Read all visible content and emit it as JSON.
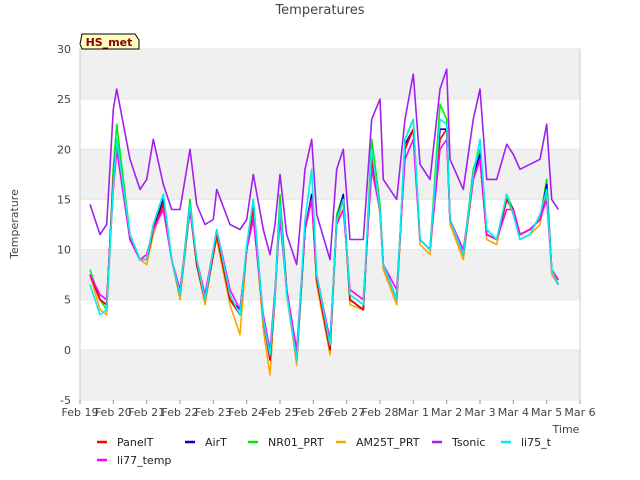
{
  "chart_data": {
    "type": "line",
    "title": "Temperatures",
    "xlabel": "Time",
    "ylabel": "Temperature",
    "ylim": [
      -5,
      30
    ],
    "xlim": [
      "Feb 19",
      "Mar 6"
    ],
    "yticks": [
      -5,
      0,
      5,
      10,
      15,
      20,
      25,
      30
    ],
    "xtick_labels": [
      "Feb 19",
      "Feb 20",
      "Feb 21",
      "Feb 22",
      "Feb 23",
      "Feb 24",
      "Feb 25",
      "Feb 26",
      "Feb 27",
      "Feb 28",
      "Mar 1",
      "Mar 2",
      "Mar 3",
      "Mar 4",
      "Mar 5",
      "Mar 6"
    ],
    "grid": "horizontal bands",
    "annotation": "HS_met",
    "legend_position": "bottom",
    "day_index": [
      0.3,
      0.6,
      0.8,
      1.0,
      1.1,
      1.5,
      1.8,
      2.0,
      2.2,
      2.5,
      2.75,
      3.0,
      3.3,
      3.5,
      3.75,
      4.0,
      4.1,
      4.5,
      4.8,
      5.0,
      5.2,
      5.5,
      5.7,
      5.85,
      6.0,
      6.2,
      6.5,
      6.75,
      6.95,
      7.1,
      7.5,
      7.7,
      7.9,
      8.1,
      8.5,
      8.75,
      9.0,
      9.1,
      9.5,
      9.75,
      10.0,
      10.2,
      10.5,
      10.8,
      11.0,
      11.1,
      11.5,
      11.8,
      12.0,
      12.2,
      12.5,
      12.8,
      13.0,
      13.2,
      13.5,
      13.8,
      14.0,
      14.15,
      14.35
    ],
    "series": [
      {
        "name": "PanelT",
        "color": "#ff0000",
        "values": [
          7.5,
          5.0,
          4.5,
          17.0,
          20.5,
          11.0,
          9.0,
          9.0,
          12.0,
          14.5,
          9.0,
          5.5,
          14.0,
          8.5,
          5.0,
          9.5,
          11.5,
          5.0,
          3.5,
          10.0,
          14.0,
          3.0,
          -1.0,
          5.5,
          14.0,
          6.0,
          -0.5,
          12.0,
          15.0,
          7.0,
          0.0,
          13.0,
          15.0,
          5.0,
          4.0,
          19.0,
          14.0,
          8.5,
          5.0,
          20.0,
          22.0,
          11.0,
          10.0,
          21.0,
          22.0,
          13.0,
          9.5,
          17.0,
          19.0,
          11.5,
          11.0,
          15.0,
          14.0,
          11.5,
          12.0,
          13.0,
          16.0,
          8.0,
          7.0
        ]
      },
      {
        "name": "li77_temp",
        "color": "#ff00ff",
        "values": [
          7.5,
          5.5,
          5.0,
          16.0,
          20.0,
          11.0,
          9.0,
          9.5,
          12.0,
          14.0,
          9.0,
          6.0,
          14.0,
          9.0,
          5.5,
          10.0,
          12.0,
          6.0,
          4.0,
          10.0,
          13.0,
          3.5,
          0.0,
          6.0,
          13.0,
          6.0,
          0.0,
          12.0,
          15.0,
          7.5,
          1.0,
          12.5,
          14.0,
          6.0,
          5.0,
          18.0,
          14.0,
          8.5,
          6.0,
          19.0,
          21.0,
          11.0,
          10.0,
          20.0,
          21.0,
          13.0,
          10.0,
          17.0,
          19.0,
          11.5,
          11.0,
          14.0,
          14.0,
          11.5,
          12.0,
          13.0,
          15.0,
          8.0,
          7.0
        ]
      },
      {
        "name": "AirT",
        "color": "#0000cc",
        "values": [
          7.5,
          5.0,
          4.5,
          17.0,
          21.0,
          11.0,
          9.0,
          9.0,
          12.0,
          15.0,
          9.0,
          5.5,
          14.5,
          8.5,
          5.0,
          9.5,
          11.5,
          5.0,
          4.0,
          10.0,
          14.5,
          3.0,
          -1.0,
          5.5,
          14.5,
          6.0,
          -1.0,
          12.0,
          15.5,
          7.0,
          0.0,
          13.0,
          15.5,
          5.0,
          4.0,
          19.5,
          14.0,
          8.5,
          5.0,
          20.5,
          22.0,
          11.0,
          10.0,
          22.0,
          22.0,
          13.0,
          9.5,
          17.5,
          19.5,
          11.5,
          11.0,
          15.0,
          14.0,
          11.5,
          12.0,
          13.0,
          16.5,
          8.0,
          6.5
        ]
      },
      {
        "name": "NR01_PRT",
        "color": "#00ee00",
        "values": [
          8.0,
          5.0,
          4.0,
          18.0,
          22.5,
          11.5,
          9.0,
          9.0,
          12.5,
          15.5,
          9.0,
          5.5,
          15.0,
          8.5,
          5.0,
          10.0,
          11.5,
          5.0,
          3.5,
          10.0,
          15.0,
          3.0,
          -1.0,
          5.5,
          15.5,
          6.0,
          -1.0,
          12.0,
          15.5,
          7.0,
          0.0,
          13.5,
          15.5,
          5.0,
          4.0,
          21.0,
          14.5,
          8.5,
          5.0,
          21.0,
          23.0,
          11.0,
          10.0,
          24.5,
          23.0,
          13.0,
          9.5,
          18.0,
          20.0,
          11.5,
          11.0,
          15.5,
          14.0,
          11.5,
          12.0,
          13.0,
          17.0,
          8.0,
          6.5
        ]
      },
      {
        "name": "AM25T_PRT",
        "color": "#ffa500",
        "values": [
          7.5,
          4.0,
          3.5,
          16.5,
          20.0,
          11.0,
          9.0,
          8.5,
          11.5,
          14.5,
          9.0,
          5.0,
          14.0,
          8.5,
          4.5,
          9.5,
          11.0,
          4.5,
          1.5,
          10.0,
          14.0,
          2.0,
          -2.5,
          5.0,
          14.0,
          5.5,
          -1.5,
          12.0,
          15.0,
          6.5,
          -0.5,
          12.5,
          15.0,
          4.5,
          4.0,
          19.0,
          13.5,
          8.0,
          4.5,
          20.0,
          22.0,
          10.5,
          9.5,
          21.0,
          22.0,
          12.5,
          9.0,
          17.0,
          19.0,
          11.0,
          10.5,
          15.0,
          13.5,
          11.0,
          11.5,
          12.5,
          16.0,
          7.5,
          6.5
        ]
      },
      {
        "name": "Tsonic",
        "color": "#a020f0",
        "values": [
          14.5,
          11.5,
          12.5,
          24.0,
          26.0,
          19.0,
          16.0,
          17.0,
          21.0,
          16.5,
          14.0,
          14.0,
          20.0,
          14.5,
          12.5,
          13.0,
          16.0,
          12.5,
          12.0,
          13.0,
          17.5,
          12.0,
          9.5,
          12.5,
          17.5,
          11.5,
          8.5,
          18.0,
          21.0,
          13.5,
          9.0,
          18.0,
          20.0,
          11.0,
          11.0,
          23.0,
          25.0,
          17.0,
          15.0,
          23.0,
          27.5,
          18.5,
          17.0,
          26.0,
          28.0,
          19.0,
          16.0,
          23.0,
          26.0,
          17.0,
          17.0,
          20.5,
          19.5,
          18.0,
          18.5,
          19.0,
          22.5,
          15.0,
          14.0
        ]
      },
      {
        "name": "li75_t",
        "color": "#00eeee",
        "values": [
          6.5,
          3.5,
          4.0,
          16.5,
          21.0,
          11.5,
          9.0,
          9.0,
          12.5,
          15.5,
          9.0,
          5.5,
          14.5,
          9.0,
          5.0,
          10.0,
          12.0,
          5.5,
          3.5,
          10.5,
          15.0,
          3.0,
          -0.5,
          5.5,
          14.5,
          5.5,
          -1.0,
          13.0,
          18.0,
          7.5,
          0.5,
          13.0,
          15.0,
          5.5,
          4.5,
          20.0,
          14.0,
          8.5,
          5.0,
          21.0,
          23.0,
          11.0,
          10.0,
          23.0,
          22.5,
          13.0,
          9.5,
          17.5,
          21.0,
          12.0,
          11.0,
          15.5,
          13.5,
          11.0,
          11.5,
          13.5,
          16.0,
          8.0,
          6.5
        ]
      }
    ]
  },
  "colors": {
    "band": "#f0f0f0",
    "plot_bg": "#ffffff",
    "border": "#cccccc",
    "annotation_fill": "#ffffc0"
  }
}
